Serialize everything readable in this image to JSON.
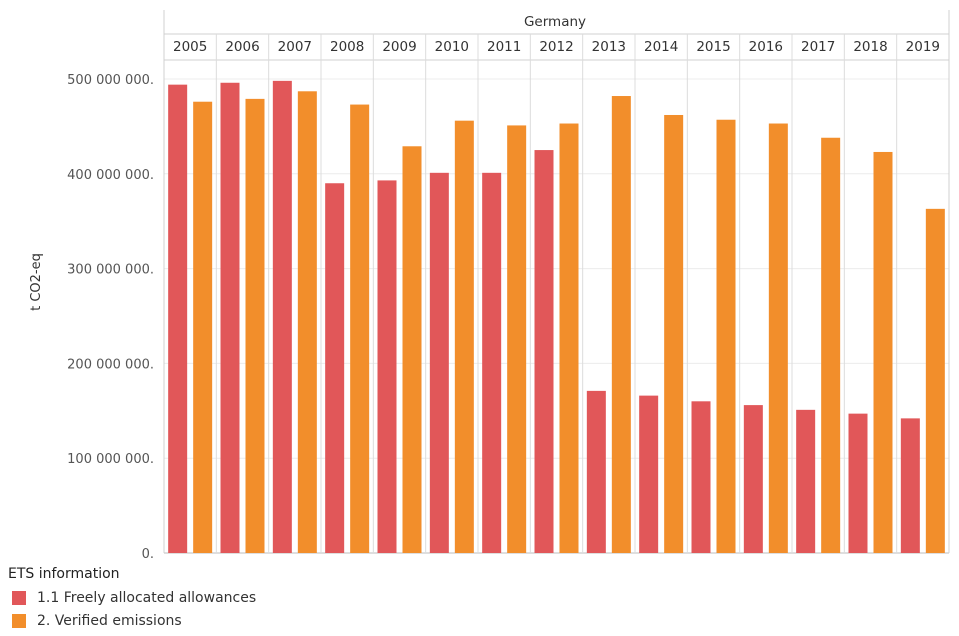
{
  "chart_data": {
    "type": "bar",
    "panel_title": "Germany",
    "ylabel": "t CO2-eq",
    "ylim": [
      0,
      520000000
    ],
    "y_ticks": [
      {
        "value": 0,
        "label": "0."
      },
      {
        "value": 100000000,
        "label": "100 000 000."
      },
      {
        "value": 200000000,
        "label": "200 000 000."
      },
      {
        "value": 300000000,
        "label": "300 000 000."
      },
      {
        "value": 400000000,
        "label": "400 000 000."
      },
      {
        "value": 500000000,
        "label": "500 000 000."
      }
    ],
    "categories": [
      "2005",
      "2006",
      "2007",
      "2008",
      "2009",
      "2010",
      "2011",
      "2012",
      "2013",
      "2014",
      "2015",
      "2016",
      "2017",
      "2018",
      "2019"
    ],
    "series": [
      {
        "name": "1.1 Freely allocated allowances",
        "color": "#e15759",
        "values": [
          494000000,
          496000000,
          498000000,
          390000000,
          393000000,
          401000000,
          401000000,
          425000000,
          171000000,
          166000000,
          160000000,
          156000000,
          151000000,
          147000000,
          142000000
        ]
      },
      {
        "name": "2. Verified emissions",
        "color": "#f28e2b",
        "values": [
          476000000,
          479000000,
          487000000,
          473000000,
          429000000,
          456000000,
          451000000,
          453000000,
          482000000,
          462000000,
          457000000,
          453000000,
          438000000,
          423000000,
          363000000
        ]
      }
    ],
    "grid": true,
    "legend_title": "ETS information",
    "legend_position": "bottom-left"
  }
}
